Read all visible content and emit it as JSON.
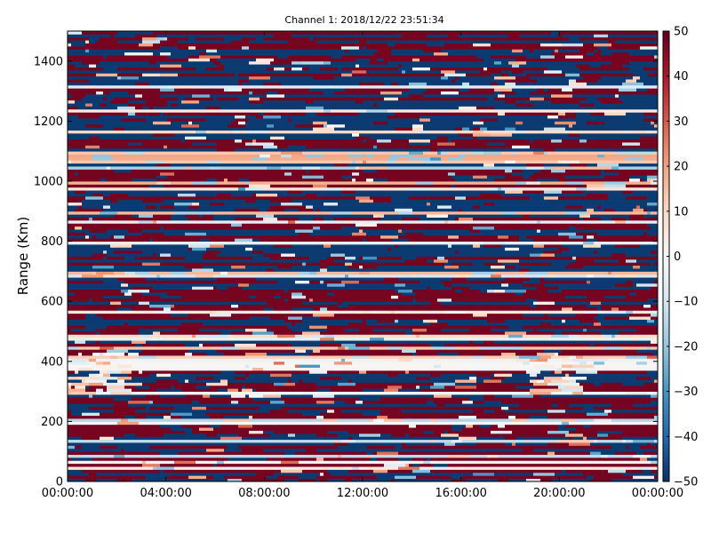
{
  "chart_data": {
    "type": "heatmap",
    "title": "Channel 1: 2018/12/22 23:51:34",
    "xlabel": "",
    "ylabel": "Range (Km)",
    "x_ticks": [
      "00:00:00",
      "04:00:00",
      "08:00:00",
      "12:00:00",
      "16:00:00",
      "20:00:00",
      "00:00:00"
    ],
    "y_ticks": [
      0,
      200,
      400,
      600,
      800,
      1000,
      1200,
      1400
    ],
    "xlim": [
      "00:00:00",
      "00:00:00"
    ],
    "ylim": [
      0,
      1500
    ],
    "colorbar": {
      "colormap": "RdBu_r",
      "range": [
        -50,
        50
      ],
      "ticks": [
        50,
        40,
        30,
        20,
        10,
        0,
        -10,
        -20,
        -30,
        -40,
        -50
      ],
      "tick_labels": [
        "50",
        "40",
        "30",
        "20",
        "10",
        "0",
        "−10",
        "−20",
        "−30",
        "−40",
        "−50"
      ]
    },
    "z_description": "Dense banded heatmap of power values across range gates (0-1500 Km) versus time; values alternate between strong positive (dark red, ~+50) and strong negative (dark blue, ~-50) in horizontal bands, with a lighter near-zero band around 1080 Km and a white/light feature near 350-420 Km.",
    "colors": {
      "high": "#67001f",
      "mid": "#f7f7f7",
      "low": "#053061"
    }
  }
}
